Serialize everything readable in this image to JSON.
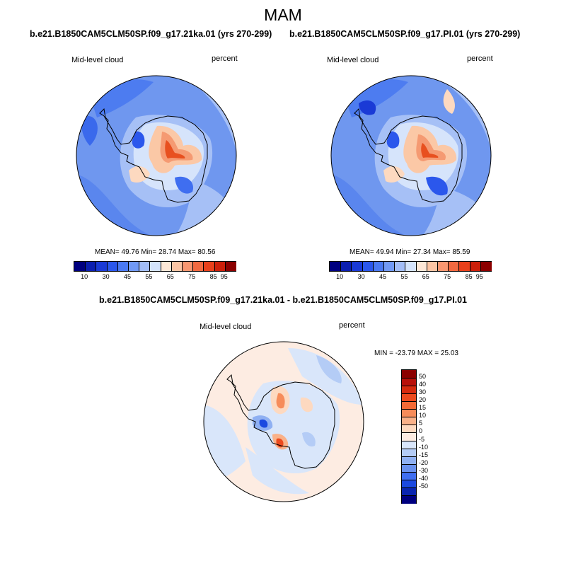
{
  "season_title": "MAM",
  "panels": [
    {
      "id": "left",
      "run_title": "b.e21.B1850CAM5CLM50SP.f09_g17.21ka.01 (yrs 270-299)",
      "variable_label": "Mid-level cloud",
      "units_label": "percent",
      "stats": "MEAN= 49.76  Min= 28.74  Max= 80.56"
    },
    {
      "id": "right",
      "run_title": "b.e21.B1850CAM5CLM50SP.f09_g17.PI.01 (yrs 270-299)",
      "variable_label": "Mid-level cloud",
      "units_label": "percent",
      "stats": "MEAN= 49.94  Min= 27.34  Max= 85.59"
    }
  ],
  "abs_colorbar": {
    "colors": [
      "#00007f",
      "#0b1eb0",
      "#1a3ad6",
      "#2b57ec",
      "#4a79f2",
      "#7199f5",
      "#a3bdf7",
      "#d4e3fb",
      "#fde7d6",
      "#fcc5a4",
      "#f99670",
      "#f26940",
      "#e8401b",
      "#cc1f0a",
      "#8b0000"
    ],
    "tick_labels": [
      "10",
      "30",
      "45",
      "55",
      "65",
      "75",
      "85",
      "95"
    ]
  },
  "diff": {
    "title": "b.e21.B1850CAM5CLM50SP.f09_g17.21ka.01 - b.e21.B1850CAM5CLM50SP.f09_g17.PI.01",
    "variable_label": "Mid-level cloud",
    "units_label": "percent",
    "stats": "MIN = -23.79 MAX =  25.03",
    "colorbar": {
      "colors_top_to_bottom": [
        "#8b0000",
        "#b8100a",
        "#d62a0e",
        "#ec4a1e",
        "#f36a36",
        "#f68c5a",
        "#f9b189",
        "#fdd9c0",
        "#fdece2",
        "#d9e6fa",
        "#b4ccf6",
        "#8fb0f2",
        "#6991ee",
        "#3f6ef0",
        "#1b49e0",
        "#0a25b0",
        "#00007f"
      ],
      "tick_labels": [
        "50",
        "40",
        "30",
        "20",
        "15",
        "10",
        "5",
        "0",
        "-5",
        "-10",
        "-15",
        "-20",
        "-30",
        "-40",
        "-50"
      ]
    }
  }
}
